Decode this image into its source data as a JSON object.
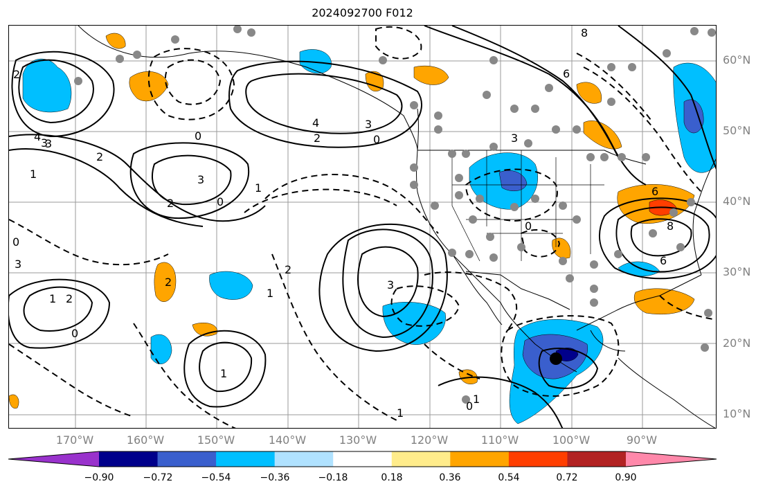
{
  "title": "2024092700 F012",
  "lat_labels": [
    "60°N",
    "50°N",
    "40°N",
    "30°N",
    "20°N",
    "10°N"
  ],
  "lon_labels": [
    "170°W",
    "160°W",
    "150°W",
    "140°W",
    "130°W",
    "120°W",
    "110°W",
    "100°W",
    "90°W"
  ],
  "contour_labels": [
    "2",
    "3",
    "1",
    "0",
    "2",
    "1",
    "6",
    "8",
    "4",
    "3",
    "0",
    "3",
    "4",
    "3",
    "2",
    "3",
    "2",
    "1",
    "0",
    "2",
    "3",
    "2",
    "0",
    "3",
    "2",
    "1",
    "0",
    "1",
    "1",
    "0",
    "6",
    "8",
    "6",
    "0",
    "1"
  ],
  "colorbar": {
    "ticks": [
      "−0.90",
      "−0.72",
      "−0.54",
      "−0.36",
      "−0.18",
      "0.18",
      "0.36",
      "0.54",
      "0.72",
      "0.90"
    ],
    "colors": [
      "#9932CC",
      "#00008B",
      "#3A5FCD",
      "#00BFFF",
      "#B0E2FF",
      "#FFFFFF",
      "#FFEC8B",
      "#FFA500",
      "#FF3E00",
      "#B22222",
      "#FF88AA"
    ]
  },
  "marker_color": "#000000"
}
